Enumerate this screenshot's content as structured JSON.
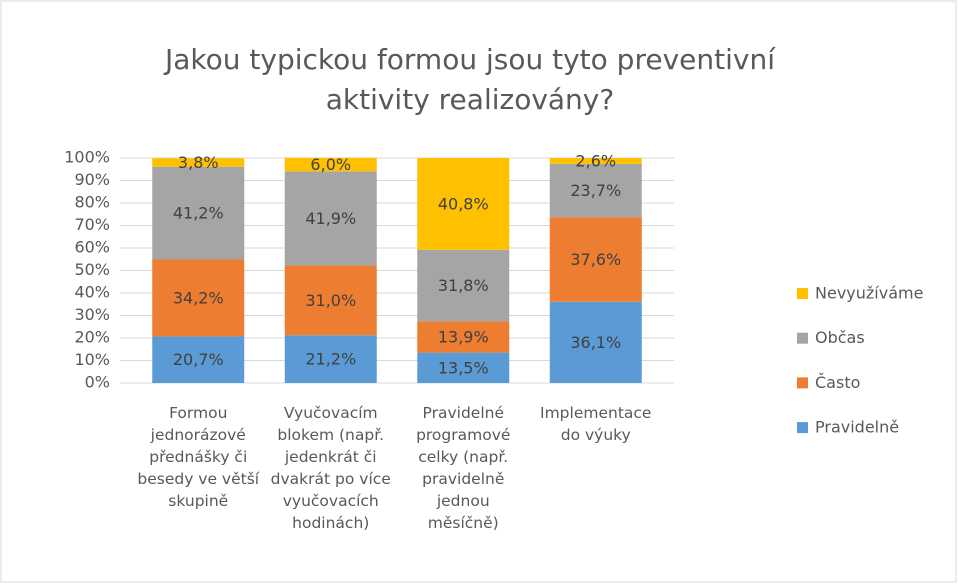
{
  "chart_data": {
    "type": "stacked_bar",
    "title": "Jakou typickou formou jsou tyto preventivní aktivity realizovány?",
    "categories": [
      "Formou jednorázové přednášky či besedy ve větší skupině",
      "Vyučovacím blokem (např. jedenkrát či dvakrát po více vyučovacích hodinách)",
      "Pravidelné programové celky (např. pravidelně jednou měsíčně)",
      "Implementace do výuky"
    ],
    "series": [
      {
        "name": "Pravidelně",
        "color": "#5b9bd5",
        "values": [
          20.7,
          21.2,
          13.5,
          36.1
        ],
        "value_labels": [
          "20,7%",
          "21,2%",
          "13,5%",
          "36,1%"
        ]
      },
      {
        "name": "Často",
        "color": "#ed7d31",
        "values": [
          34.2,
          31.0,
          13.9,
          37.6
        ],
        "value_labels": [
          "34,2%",
          "31,0%",
          "13,9%",
          "37,6%"
        ]
      },
      {
        "name": "Občas",
        "color": "#a5a5a5",
        "values": [
          41.2,
          41.9,
          31.8,
          23.7
        ],
        "value_labels": [
          "41,2%",
          "41,9%",
          "31,8%",
          "23,7%"
        ]
      },
      {
        "name": "Nevyužíváme",
        "color": "#ffc000",
        "values": [
          3.8,
          6.0,
          40.8,
          2.6
        ],
        "value_labels": [
          "3,8%",
          "6,0%",
          "40,8%",
          "2,6%"
        ]
      }
    ],
    "ylim": [
      0,
      100
    ],
    "yticks": [
      {
        "value": 0,
        "label": "0%"
      },
      {
        "value": 10,
        "label": "10%"
      },
      {
        "value": 20,
        "label": "20%"
      },
      {
        "value": 30,
        "label": "30%"
      },
      {
        "value": 40,
        "label": "40%"
      },
      {
        "value": 50,
        "label": "50%"
      },
      {
        "value": 60,
        "label": "60%"
      },
      {
        "value": 70,
        "label": "70%"
      },
      {
        "value": 80,
        "label": "80%"
      },
      {
        "value": 90,
        "label": "90%"
      },
      {
        "value": 100,
        "label": "100%"
      }
    ],
    "grid": true,
    "legend": "right"
  }
}
